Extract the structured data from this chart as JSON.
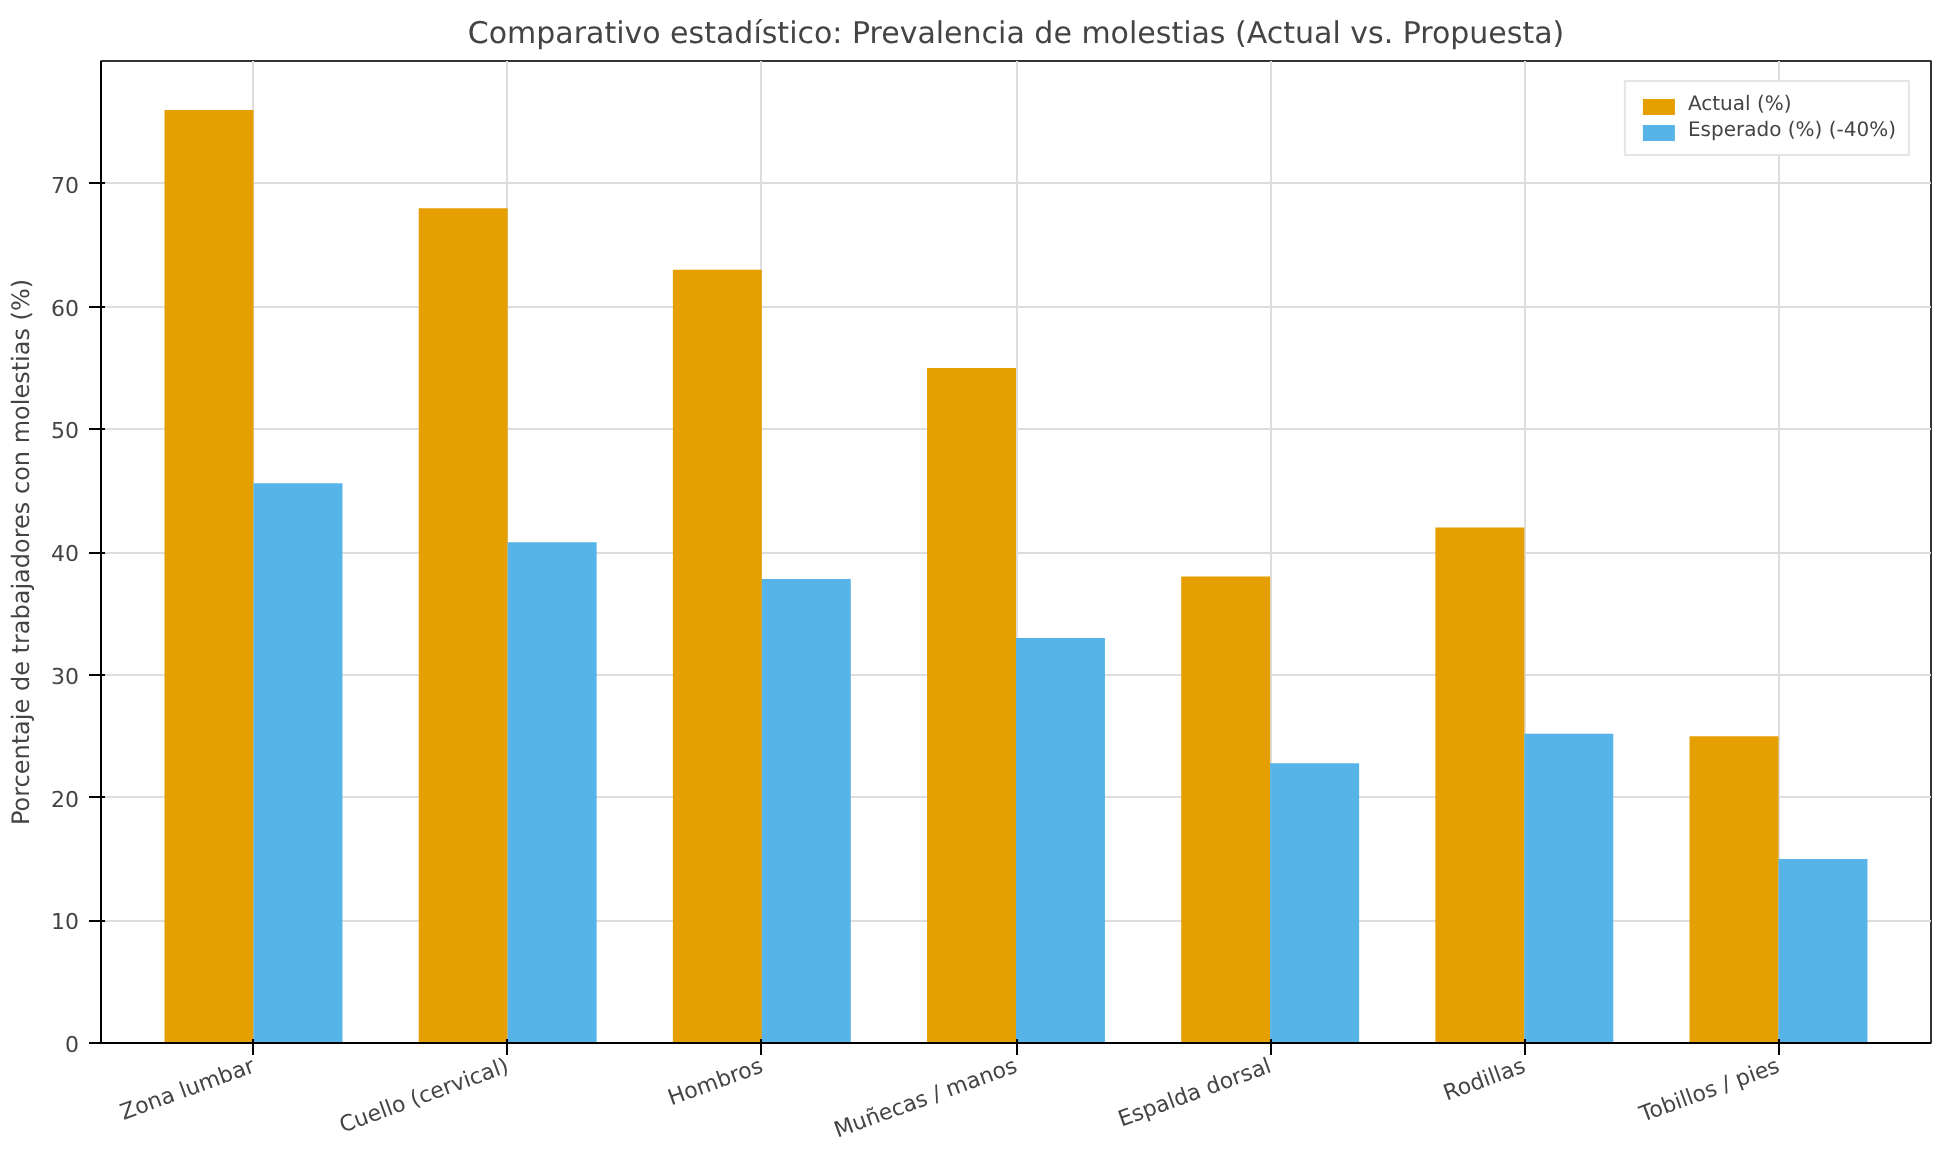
{
  "chart_data": {
    "type": "bar",
    "title": "Comparativo estadístico: Prevalencia de molestias (Actual vs. Propuesta)",
    "ylabel": "Porcentaje de trabajadores con molestias (%)",
    "categories": [
      "Zona lumbar",
      "Cuello (cervical)",
      "Hombros",
      "Muñecas / manos",
      "Espalda dorsal",
      "Rodillas",
      "Tobillos / pies"
    ],
    "series": [
      {
        "name": "Actual (%)",
        "color": "#e69f00",
        "values": [
          76,
          68,
          63,
          55,
          38,
          42,
          25
        ]
      },
      {
        "name": "Esperado (%) (-40%)",
        "color": "#56b4e9",
        "values": [
          45.6,
          40.8,
          37.8,
          33,
          22.8,
          25.2,
          15
        ]
      }
    ],
    "ylim": [
      0,
      80
    ],
    "yticks": [
      0,
      10,
      20,
      30,
      40,
      50,
      60,
      70
    ],
    "grid": true,
    "legend": "top right"
  }
}
